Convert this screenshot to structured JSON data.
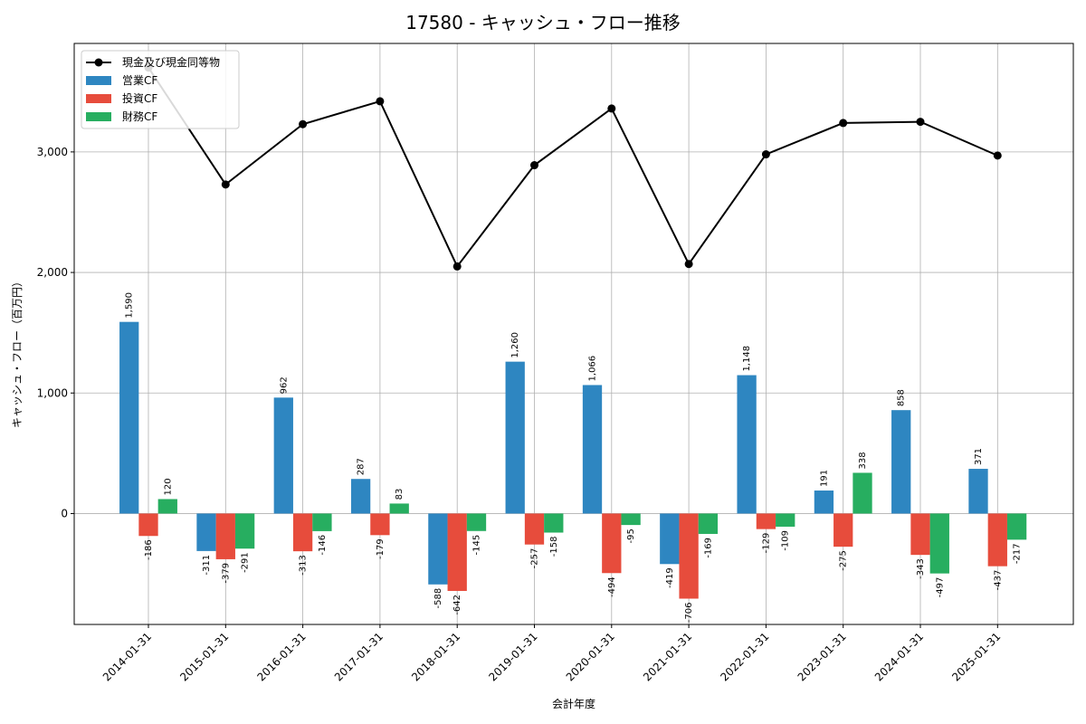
{
  "chart_data": {
    "type": "bar",
    "title": "17580 - キャッシュ・フロー推移",
    "xlabel": "会計年度",
    "ylabel": "キャッシュ・フロー（百万円）",
    "categories": [
      "2014-01-31",
      "2015-01-31",
      "2016-01-31",
      "2017-01-31",
      "2018-01-31",
      "2019-01-31",
      "2020-01-31",
      "2021-01-31",
      "2022-01-31",
      "2023-01-31",
      "2024-01-31",
      "2025-01-31"
    ],
    "ylim": [
      -920,
      3900
    ],
    "yticks": [
      0,
      1000,
      2000,
      3000
    ],
    "ytick_labels": [
      "0",
      "1,000",
      "2,000",
      "3,000"
    ],
    "grid": true,
    "legend_position": "top-left",
    "series": [
      {
        "name": "営業CF",
        "kind": "bar",
        "color": "#2e86c1",
        "values": [
          1590,
          -311,
          962,
          287,
          -588,
          1260,
          1066,
          -419,
          1148,
          191,
          858,
          371
        ],
        "labels": [
          "1,590",
          "-311",
          "962",
          "287",
          "-588",
          "1,260",
          "1,066",
          "-419",
          "1,148",
          "191",
          "858",
          "371"
        ]
      },
      {
        "name": "投資CF",
        "kind": "bar",
        "color": "#e74c3c",
        "values": [
          -186,
          -379,
          -313,
          -179,
          -642,
          -257,
          -494,
          -706,
          -129,
          -275,
          -343,
          -437
        ],
        "labels": [
          "-186",
          "-379",
          "-313",
          "-179",
          "-642",
          "-257",
          "-494",
          "-706",
          "-129",
          "-275",
          "-343",
          "-437"
        ]
      },
      {
        "name": "財務CF",
        "kind": "bar",
        "color": "#27ae60",
        "values": [
          120,
          -291,
          -146,
          83,
          -145,
          -158,
          -95,
          -169,
          -109,
          338,
          -497,
          -217
        ],
        "labels": [
          "120",
          "-291",
          "-146",
          "83",
          "-145",
          "-158",
          "-95",
          "-169",
          "-109",
          "338",
          "-497",
          "-217"
        ]
      },
      {
        "name": "現金及び現金同等物",
        "kind": "line",
        "color": "#000000",
        "values": [
          3700,
          2730,
          3230,
          3420,
          2050,
          2890,
          3360,
          2070,
          2980,
          3240,
          3250,
          2970
        ]
      }
    ]
  }
}
